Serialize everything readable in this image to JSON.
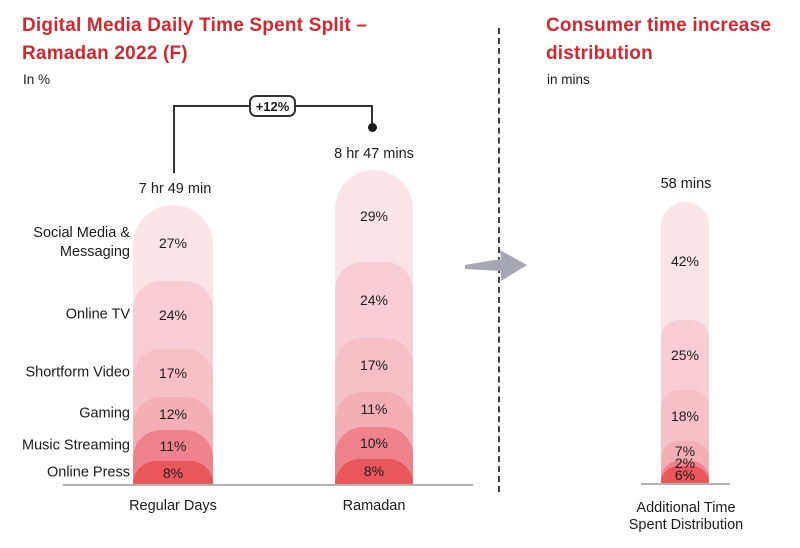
{
  "left_chart": {
    "title_line1": "Digital Media Daily Time Spent Split –",
    "title_line2": "Ramadan 2022 (F)",
    "subtitle": "In %",
    "title_color": "#d7262c",
    "increase_label": "+12%"
  },
  "right_chart": {
    "title_line1": "Consumer time increase",
    "title_line2": "distribution",
    "subtitle": "in mins",
    "title_color": "#d7262c",
    "x_label_line1": "Additional Time",
    "x_label_line2": "Spent Distribution"
  },
  "palette": [
    "#fce4e9",
    "#f9cdd5",
    "#f6c0c8",
    "#f3aeb6",
    "#ef828a",
    "#e9565c"
  ],
  "accent_gray": "#a8a8b4",
  "chart_data": [
    {
      "type": "bar",
      "subtype": "stacked-rounded",
      "title": "Digital Media Daily Time Spent Split – Ramadan 2022 (F)",
      "unit": "%",
      "legend_position": "left-category-labels",
      "grid": false,
      "categories": [
        "Social Media & Messaging",
        "Online TV",
        "Shortform Video",
        "Gaming",
        "Music Streaming",
        "Online Press"
      ],
      "series": [
        {
          "name": "Regular Days",
          "total_label": "7 hr 49 min",
          "values": [
            27,
            24,
            17,
            12,
            11,
            8
          ]
        },
        {
          "name": "Ramadan",
          "total_label": "8 hr 47 mins",
          "values": [
            29,
            24,
            17,
            11,
            10,
            8
          ]
        }
      ],
      "annotation": "+12%"
    },
    {
      "type": "bar",
      "subtype": "stacked-rounded",
      "title": "Consumer time increase distribution",
      "unit": "mins",
      "grid": false,
      "categories": [
        "Social Media & Messaging",
        "Online TV",
        "Shortform Video",
        "Gaming",
        "Music Streaming",
        "Online Press"
      ],
      "series": [
        {
          "name": "Additional Time Spent Distribution",
          "total_label": "58 mins",
          "values": [
            42,
            25,
            18,
            7,
            2,
            6
          ]
        }
      ]
    }
  ]
}
